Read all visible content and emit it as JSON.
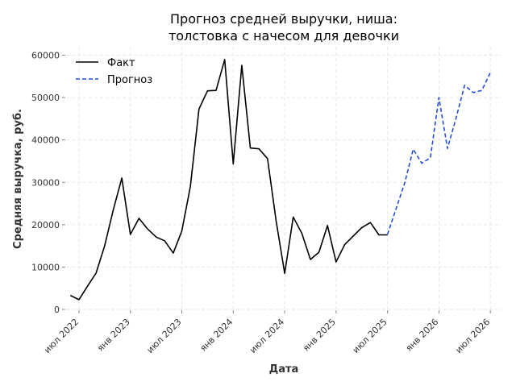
{
  "chart_data": {
    "type": "line",
    "title_line1": "Прогноз средней выручки, ниша:",
    "title_line2": "толстовка с начесом для девочки",
    "xlabel": "Дата",
    "ylabel": "Средняя выручка, руб.",
    "ylim": [
      0,
      62000
    ],
    "y_ticks": [
      0,
      10000,
      20000,
      30000,
      40000,
      50000,
      60000
    ],
    "x_ticks": [
      {
        "date": "2022-07",
        "label": "июл 2022"
      },
      {
        "date": "2023-01",
        "label": "янв 2023"
      },
      {
        "date": "2023-07",
        "label": "июл 2023"
      },
      {
        "date": "2024-01",
        "label": "янв 2024"
      },
      {
        "date": "2024-07",
        "label": "июл 2024"
      },
      {
        "date": "2025-01",
        "label": "янв 2025"
      },
      {
        "date": "2025-07",
        "label": "июл 2025"
      },
      {
        "date": "2026-01",
        "label": "янв 2026"
      },
      {
        "date": "2026-07",
        "label": "июл 2026"
      }
    ],
    "grid": true,
    "legend_position": "top-left",
    "series": [
      {
        "name": "Факт",
        "color": "#000000",
        "style": "solid",
        "x": [
          "2022-06",
          "2022-07",
          "2022-08",
          "2022-09",
          "2022-10",
          "2022-11",
          "2022-12",
          "2023-01",
          "2023-02",
          "2023-03",
          "2023-04",
          "2023-05",
          "2023-06",
          "2023-07",
          "2023-08",
          "2023-09",
          "2023-10",
          "2023-11",
          "2023-12",
          "2024-01",
          "2024-02",
          "2024-03",
          "2024-04",
          "2024-05",
          "2024-06",
          "2024-07",
          "2024-08",
          "2024-09",
          "2024-10",
          "2024-11",
          "2024-12",
          "2025-01",
          "2025-02",
          "2025-03",
          "2025-04",
          "2025-05",
          "2025-06",
          "2025-07"
        ],
        "y": [
          3300,
          2300,
          5500,
          8600,
          15000,
          23500,
          31000,
          17700,
          21500,
          19000,
          17100,
          16200,
          13300,
          18500,
          29000,
          47300,
          51600,
          51700,
          59000,
          34300,
          57600,
          38100,
          37900,
          35600,
          21000,
          8500,
          21800,
          18000,
          11800,
          13500,
          19800,
          11200,
          15300,
          17300,
          19300,
          20500,
          17600,
          17600
        ]
      },
      {
        "name": "Прогноз",
        "color": "#1f4fd6",
        "style": "dashed",
        "x": [
          "2025-07",
          "2025-08",
          "2025-09",
          "2025-10",
          "2025-11",
          "2025-12",
          "2026-01",
          "2026-02",
          "2026-03",
          "2026-04",
          "2026-05",
          "2026-06",
          "2026-07"
        ],
        "y": [
          17700,
          23800,
          29800,
          37800,
          34500,
          35800,
          50000,
          38000,
          45200,
          52900,
          51200,
          51700,
          55900
        ]
      }
    ]
  }
}
